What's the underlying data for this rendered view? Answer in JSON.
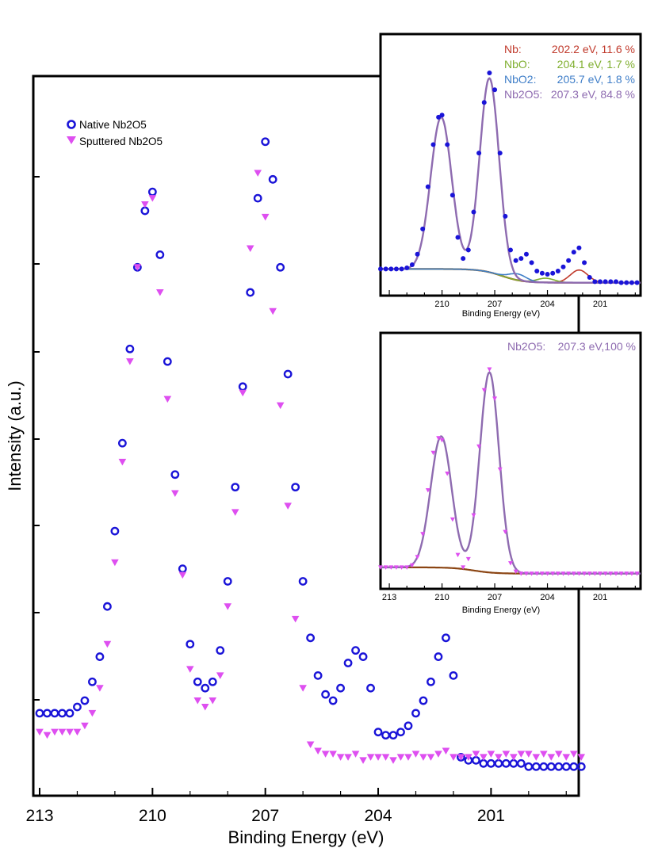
{
  "chart_data": [
    {
      "id": "main",
      "type": "scatter",
      "xlabel": "Binding Energy (eV)",
      "ylabel": "Intensity (a.u.)",
      "xlim": [
        213,
        198.5
      ],
      "x_ticks": [
        "213",
        "210",
        "207",
        "204",
        "201"
      ],
      "x_tick_values": [
        213,
        210,
        207,
        204,
        201
      ],
      "ylim": [
        0,
        1.06
      ],
      "y_tick_labels_shown": false,
      "legend": {
        "placement": "top-left"
      },
      "series": [
        {
          "name": "Native Nb2O5",
          "marker": "open-circle",
          "color": "#1a14d8",
          "x": [
            213.0,
            212.8,
            212.6,
            212.4,
            212.2,
            212.0,
            211.8,
            211.6,
            211.4,
            211.2,
            211.0,
            210.8,
            210.6,
            210.4,
            210.2,
            210.0,
            209.8,
            209.6,
            209.4,
            209.2,
            209.0,
            208.8,
            208.6,
            208.4,
            208.2,
            208.0,
            207.8,
            207.6,
            207.4,
            207.2,
            207.0,
            206.8,
            206.6,
            206.4,
            206.2,
            206.0,
            205.8,
            205.6,
            205.4,
            205.2,
            205.0,
            204.8,
            204.6,
            204.4,
            204.2,
            204.0,
            203.8,
            203.6,
            203.4,
            203.2,
            203.0,
            202.8,
            202.6,
            202.4,
            202.2,
            202.0,
            201.8,
            201.6,
            201.4,
            201.2,
            201.0,
            200.8,
            200.6,
            200.4,
            200.2,
            200.0,
            199.8,
            199.6,
            199.4,
            199.2,
            199.0,
            198.8,
            198.6
          ],
          "y": [
            0.12,
            0.12,
            0.12,
            0.12,
            0.12,
            0.13,
            0.14,
            0.17,
            0.21,
            0.29,
            0.41,
            0.55,
            0.7,
            0.83,
            0.92,
            0.95,
            0.85,
            0.68,
            0.5,
            0.35,
            0.23,
            0.17,
            0.16,
            0.17,
            0.22,
            0.33,
            0.48,
            0.64,
            0.79,
            0.94,
            1.03,
            0.97,
            0.83,
            0.66,
            0.48,
            0.33,
            0.24,
            0.18,
            0.15,
            0.14,
            0.16,
            0.2,
            0.22,
            0.21,
            0.16,
            0.09,
            0.085,
            0.085,
            0.09,
            0.1,
            0.12,
            0.14,
            0.17,
            0.21,
            0.24,
            0.18,
            0.05,
            0.045,
            0.045,
            0.04,
            0.04,
            0.04,
            0.04,
            0.04,
            0.04,
            0.035,
            0.035,
            0.035,
            0.035,
            0.035,
            0.035,
            0.035,
            0.035
          ]
        },
        {
          "name": "Sputtered Nb2O5",
          "marker": "filled-down-triangle",
          "color": "#de4ff0",
          "x": [
            213.0,
            212.8,
            212.6,
            212.4,
            212.2,
            212.0,
            211.8,
            211.6,
            211.4,
            211.2,
            211.0,
            210.8,
            210.6,
            210.4,
            210.2,
            210.0,
            209.8,
            209.6,
            209.4,
            209.2,
            209.0,
            208.8,
            208.6,
            208.4,
            208.2,
            208.0,
            207.8,
            207.6,
            207.4,
            207.2,
            207.0,
            206.8,
            206.6,
            206.4,
            206.2,
            206.0,
            205.8,
            205.6,
            205.4,
            205.2,
            205.0,
            204.8,
            204.6,
            204.4,
            204.2,
            204.0,
            203.8,
            203.6,
            203.4,
            203.2,
            203.0,
            202.8,
            202.6,
            202.4,
            202.2,
            202.0,
            201.8,
            201.6,
            201.4,
            201.2,
            201.0,
            200.8,
            200.6,
            200.4,
            200.2,
            200.0,
            199.8,
            199.6,
            199.4,
            199.2,
            199.0,
            198.8,
            198.6
          ],
          "y": [
            0.09,
            0.085,
            0.09,
            0.09,
            0.09,
            0.09,
            0.1,
            0.12,
            0.16,
            0.23,
            0.36,
            0.52,
            0.68,
            0.83,
            0.93,
            0.94,
            0.79,
            0.62,
            0.47,
            0.34,
            0.19,
            0.14,
            0.13,
            0.14,
            0.18,
            0.29,
            0.44,
            0.63,
            0.86,
            0.98,
            0.91,
            0.76,
            0.61,
            0.45,
            0.27,
            0.16,
            0.07,
            0.06,
            0.055,
            0.055,
            0.05,
            0.05,
            0.055,
            0.045,
            0.05,
            0.05,
            0.05,
            0.045,
            0.05,
            0.05,
            0.055,
            0.05,
            0.05,
            0.055,
            0.06,
            0.05,
            0.05,
            0.05,
            0.055,
            0.05,
            0.055,
            0.05,
            0.055,
            0.05,
            0.055,
            0.055,
            0.05,
            0.055,
            0.05,
            0.055,
            0.05,
            0.055,
            0.05
          ]
        }
      ]
    },
    {
      "id": "inset-native",
      "type": "line",
      "xlabel": "Binding Energy (eV)",
      "x_ticks": [
        "210",
        "207",
        "204",
        "201"
      ],
      "x_tick_values": [
        210,
        207,
        204,
        201
      ],
      "xlim": [
        213.5,
        198.7
      ],
      "ylim": [
        0,
        1.02
      ],
      "annotations": [
        {
          "label": "Nb:",
          "value": "202.2 eV, 11.6 %",
          "color": "#c0392b"
        },
        {
          "label": "NbO:",
          "value": "204.1 eV,   1.7 %",
          "color": "#7fae2e"
        },
        {
          "label": "NbO2:",
          "value": "205.7 eV,   1.8 %",
          "color": "#3f7ec8"
        },
        {
          "label": "Nb2O5:",
          "value": "207.3 eV, 84.8 %",
          "color": "#8e6bb0"
        }
      ],
      "components": [
        {
          "name": "Nb",
          "center": 202.2,
          "height": 0.06,
          "color": "#c0392b"
        },
        {
          "name": "NbO",
          "center": 204.1,
          "height": 0.02,
          "color": "#7fae2e"
        },
        {
          "name": "NbO2",
          "center": 205.7,
          "height": 0.03,
          "color": "#3f7ec8"
        },
        {
          "name": "Nb2O5",
          "center": 207.3,
          "color": "#8e6bb0"
        },
        {
          "name": "Background",
          "color": "#8b4513"
        }
      ],
      "series": [
        {
          "marker": "filled-circle",
          "color": "#1a14d8",
          "x": [
            213.5,
            213.2,
            212.9,
            212.6,
            212.3,
            212.0,
            211.7,
            211.4,
            211.1,
            210.8,
            210.5,
            210.2,
            210.0,
            209.7,
            209.4,
            209.1,
            208.8,
            208.5,
            208.2,
            207.9,
            207.6,
            207.3,
            207.0,
            206.7,
            206.4,
            206.1,
            205.8,
            205.5,
            205.2,
            204.9,
            204.6,
            204.3,
            204.0,
            203.7,
            203.4,
            203.1,
            202.8,
            202.5,
            202.2,
            201.9,
            201.6,
            201.3,
            201.0,
            200.7,
            200.4,
            200.1,
            199.8,
            199.5,
            199.2,
            198.9
          ],
          "y": [
            0.07,
            0.07,
            0.07,
            0.07,
            0.07,
            0.075,
            0.09,
            0.14,
            0.26,
            0.46,
            0.66,
            0.79,
            0.8,
            0.66,
            0.42,
            0.22,
            0.12,
            0.16,
            0.34,
            0.62,
            0.86,
            1.0,
            0.92,
            0.62,
            0.32,
            0.16,
            0.11,
            0.12,
            0.14,
            0.1,
            0.06,
            0.05,
            0.045,
            0.05,
            0.06,
            0.08,
            0.11,
            0.15,
            0.17,
            0.1,
            0.03,
            0.01,
            0.01,
            0.01,
            0.01,
            0.01,
            0.005,
            0.005,
            0.005,
            0.005
          ]
        }
      ]
    },
    {
      "id": "inset-sputtered",
      "type": "line",
      "xlabel": "Binding Energy (eV)",
      "x_ticks": [
        "213",
        "210",
        "207",
        "204",
        "201"
      ],
      "x_tick_values": [
        213,
        210,
        207,
        204,
        201
      ],
      "xlim": [
        213.5,
        198.7
      ],
      "ylim": [
        0,
        1.02
      ],
      "annotations": [
        {
          "label": "Nb2O5:",
          "value": "207.3 eV,100 %",
          "color": "#8e6bb0"
        }
      ],
      "components": [
        {
          "name": "Nb2O5",
          "center": 207.3,
          "color": "#8e6bb0"
        },
        {
          "name": "Background",
          "color": "#8b4513"
        }
      ],
      "series": [
        {
          "marker": "filled-down-triangle",
          "color": "#de4ff0",
          "x": [
            213.5,
            213.2,
            212.9,
            212.6,
            212.3,
            212.0,
            211.7,
            211.4,
            211.1,
            210.8,
            210.5,
            210.2,
            210.0,
            209.7,
            209.4,
            209.1,
            208.8,
            208.5,
            208.2,
            207.9,
            207.6,
            207.3,
            207.0,
            206.7,
            206.4,
            206.1,
            205.8,
            205.5,
            205.2,
            204.9,
            204.6,
            204.3,
            204.0,
            203.7,
            203.4,
            203.1,
            202.8,
            202.5,
            202.2,
            201.9,
            201.6,
            201.3,
            201.0,
            200.7,
            200.4,
            200.1,
            199.8,
            199.5,
            199.2,
            198.9
          ],
          "y": [
            0.05,
            0.05,
            0.05,
            0.05,
            0.05,
            0.05,
            0.06,
            0.1,
            0.21,
            0.42,
            0.6,
            0.67,
            0.66,
            0.5,
            0.28,
            0.11,
            0.05,
            0.09,
            0.3,
            0.63,
            0.9,
            1.0,
            0.86,
            0.52,
            0.22,
            0.07,
            0.03,
            0.02,
            0.02,
            0.02,
            0.02,
            0.02,
            0.02,
            0.02,
            0.02,
            0.02,
            0.02,
            0.02,
            0.02,
            0.02,
            0.02,
            0.02,
            0.02,
            0.02,
            0.02,
            0.02,
            0.02,
            0.02,
            0.02,
            0.02
          ]
        }
      ]
    }
  ]
}
